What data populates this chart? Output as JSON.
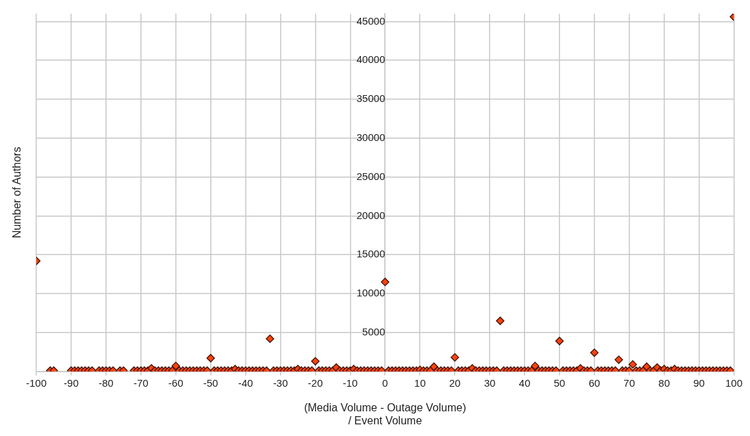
{
  "chart_data": {
    "type": "scatter",
    "xlabel": "(Media Volume - Outage Volume)\n/ Event Volume",
    "ylabel": "Number of Authors",
    "xlim": [
      -100,
      100
    ],
    "xticks": [
      -100,
      -90,
      -80,
      -70,
      -60,
      -50,
      -40,
      -30,
      -20,
      -10,
      0,
      10,
      20,
      30,
      40,
      50,
      60,
      70,
      80,
      90,
      100
    ],
    "ylim": [
      0,
      46000
    ],
    "yticks": [
      {
        "value": 0,
        "label": null
      },
      5000,
      10000,
      15000,
      20000,
      25000,
      30000,
      35000,
      40000,
      45000
    ],
    "grid": true,
    "legend": false,
    "marker": "diamond",
    "series": [
      {
        "color": "#ff420e",
        "x": [
          -100,
          -96,
          -95,
          -90,
          -89,
          -88,
          -87,
          -86,
          -85,
          -84,
          -82,
          -81,
          -80,
          -79,
          -78,
          -76,
          -75,
          -72,
          -71,
          -70,
          -69,
          -68,
          -67,
          -66,
          -65,
          -64,
          -63,
          -62,
          -61,
          -60,
          -59,
          -58,
          -57,
          -56,
          -55,
          -54,
          -53,
          -52,
          -51,
          -50,
          -49,
          -48,
          -47,
          -46,
          -45,
          -44,
          -43,
          -42,
          -41,
          -40,
          -39,
          -38,
          -37,
          -36,
          -35,
          -34,
          -33,
          -32,
          -31,
          -30,
          -29,
          -28,
          -27,
          -26,
          -25,
          -24,
          -23,
          -22,
          -21,
          -20,
          -19,
          -18,
          -17,
          -16,
          -15,
          -14,
          -13,
          -12,
          -11,
          -10,
          -9,
          -8,
          -7,
          -6,
          -5,
          -4,
          -3,
          -2,
          -1,
          0,
          1,
          2,
          3,
          4,
          5,
          6,
          7,
          8,
          9,
          10,
          11,
          12,
          13,
          14,
          15,
          16,
          17,
          18,
          19,
          20,
          21,
          22,
          23,
          24,
          25,
          26,
          27,
          28,
          29,
          30,
          31,
          32,
          33,
          34,
          35,
          36,
          37,
          38,
          39,
          40,
          41,
          42,
          43,
          44,
          45,
          46,
          47,
          48,
          49,
          50,
          51,
          52,
          53,
          54,
          55,
          56,
          57,
          58,
          59,
          60,
          61,
          62,
          63,
          64,
          65,
          66,
          67,
          68,
          69,
          70,
          71,
          72,
          73,
          74,
          75,
          76,
          77,
          78,
          79,
          80,
          81,
          82,
          83,
          84,
          85,
          86,
          87,
          88,
          89,
          90,
          91,
          92,
          93,
          94,
          95,
          96,
          97,
          98,
          99,
          100
        ],
        "values": [
          14200,
          100,
          100,
          100,
          100,
          100,
          100,
          100,
          100,
          100,
          100,
          100,
          100,
          100,
          100,
          100,
          100,
          100,
          100,
          100,
          100,
          100,
          400,
          100,
          100,
          100,
          100,
          100,
          100,
          700,
          100,
          100,
          100,
          100,
          100,
          100,
          100,
          100,
          100,
          1700,
          100,
          100,
          100,
          100,
          100,
          100,
          300,
          100,
          100,
          100,
          100,
          100,
          100,
          100,
          100,
          100,
          4200,
          100,
          100,
          100,
          100,
          100,
          100,
          100,
          300,
          100,
          100,
          100,
          100,
          1300,
          100,
          100,
          100,
          100,
          100,
          500,
          100,
          100,
          100,
          100,
          300,
          100,
          100,
          100,
          100,
          100,
          100,
          100,
          100,
          11500,
          100,
          100,
          100,
          100,
          100,
          100,
          100,
          100,
          100,
          200,
          100,
          100,
          100,
          600,
          100,
          100,
          100,
          100,
          100,
          1800,
          100,
          100,
          100,
          100,
          400,
          100,
          100,
          100,
          100,
          100,
          100,
          100,
          6500,
          100,
          100,
          100,
          100,
          100,
          100,
          100,
          100,
          100,
          700,
          100,
          100,
          100,
          100,
          100,
          100,
          3900,
          100,
          100,
          100,
          100,
          100,
          400,
          100,
          100,
          100,
          2400,
          100,
          100,
          100,
          100,
          100,
          100,
          1500,
          100,
          100,
          100,
          900,
          100,
          100,
          100,
          600,
          100,
          100,
          500,
          100,
          300,
          100,
          100,
          300,
          100,
          100,
          100,
          100,
          100,
          100,
          100,
          100,
          100,
          100,
          100,
          100,
          100,
          100,
          100,
          100,
          45600
        ]
      }
    ]
  }
}
